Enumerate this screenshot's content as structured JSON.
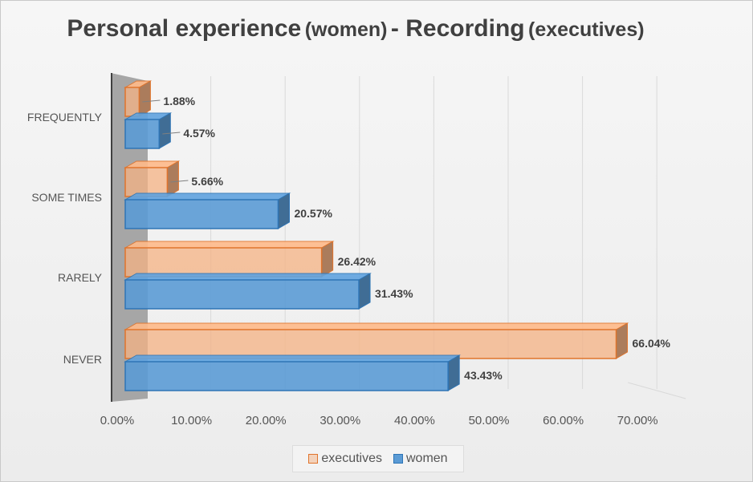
{
  "chart_data": {
    "type": "bar",
    "orientation": "horizontal",
    "title_main": "Personal experience",
    "title_sub_1": "(women)",
    "title_sep": "- Recording",
    "title_sub_2": "(executives)",
    "categories": [
      "FREQUENTLY",
      "SOME TIMES",
      "RARELY",
      "NEVER"
    ],
    "series": [
      {
        "name": "executives",
        "values": [
          1.88,
          5.66,
          26.42,
          66.04
        ],
        "labels": [
          "1.88%",
          "5.66%",
          "26.42%",
          "66.04%"
        ],
        "color": "#f4b183",
        "edge": "#e0742c"
      },
      {
        "name": "women",
        "values": [
          4.57,
          20.57,
          31.43,
          43.43
        ],
        "labels": [
          "4.57%",
          "20.57%",
          "31.43%",
          "43.43%"
        ],
        "color": "#5b9bd5",
        "edge": "#2e75b6"
      }
    ],
    "xlim": [
      0,
      70
    ],
    "xticks": [
      {
        "value": 0,
        "label": "0.00%"
      },
      {
        "value": 10,
        "label": "10.00%"
      },
      {
        "value": 20,
        "label": "20.00%"
      },
      {
        "value": 30,
        "label": "30.00%"
      },
      {
        "value": 40,
        "label": "40.00%"
      },
      {
        "value": 50,
        "label": "50.00%"
      },
      {
        "value": 60,
        "label": "60.00%"
      },
      {
        "value": 70,
        "label": "70.00%"
      }
    ],
    "grid": true,
    "legend_position": "bottom",
    "style": "3d-clustered-bar"
  }
}
